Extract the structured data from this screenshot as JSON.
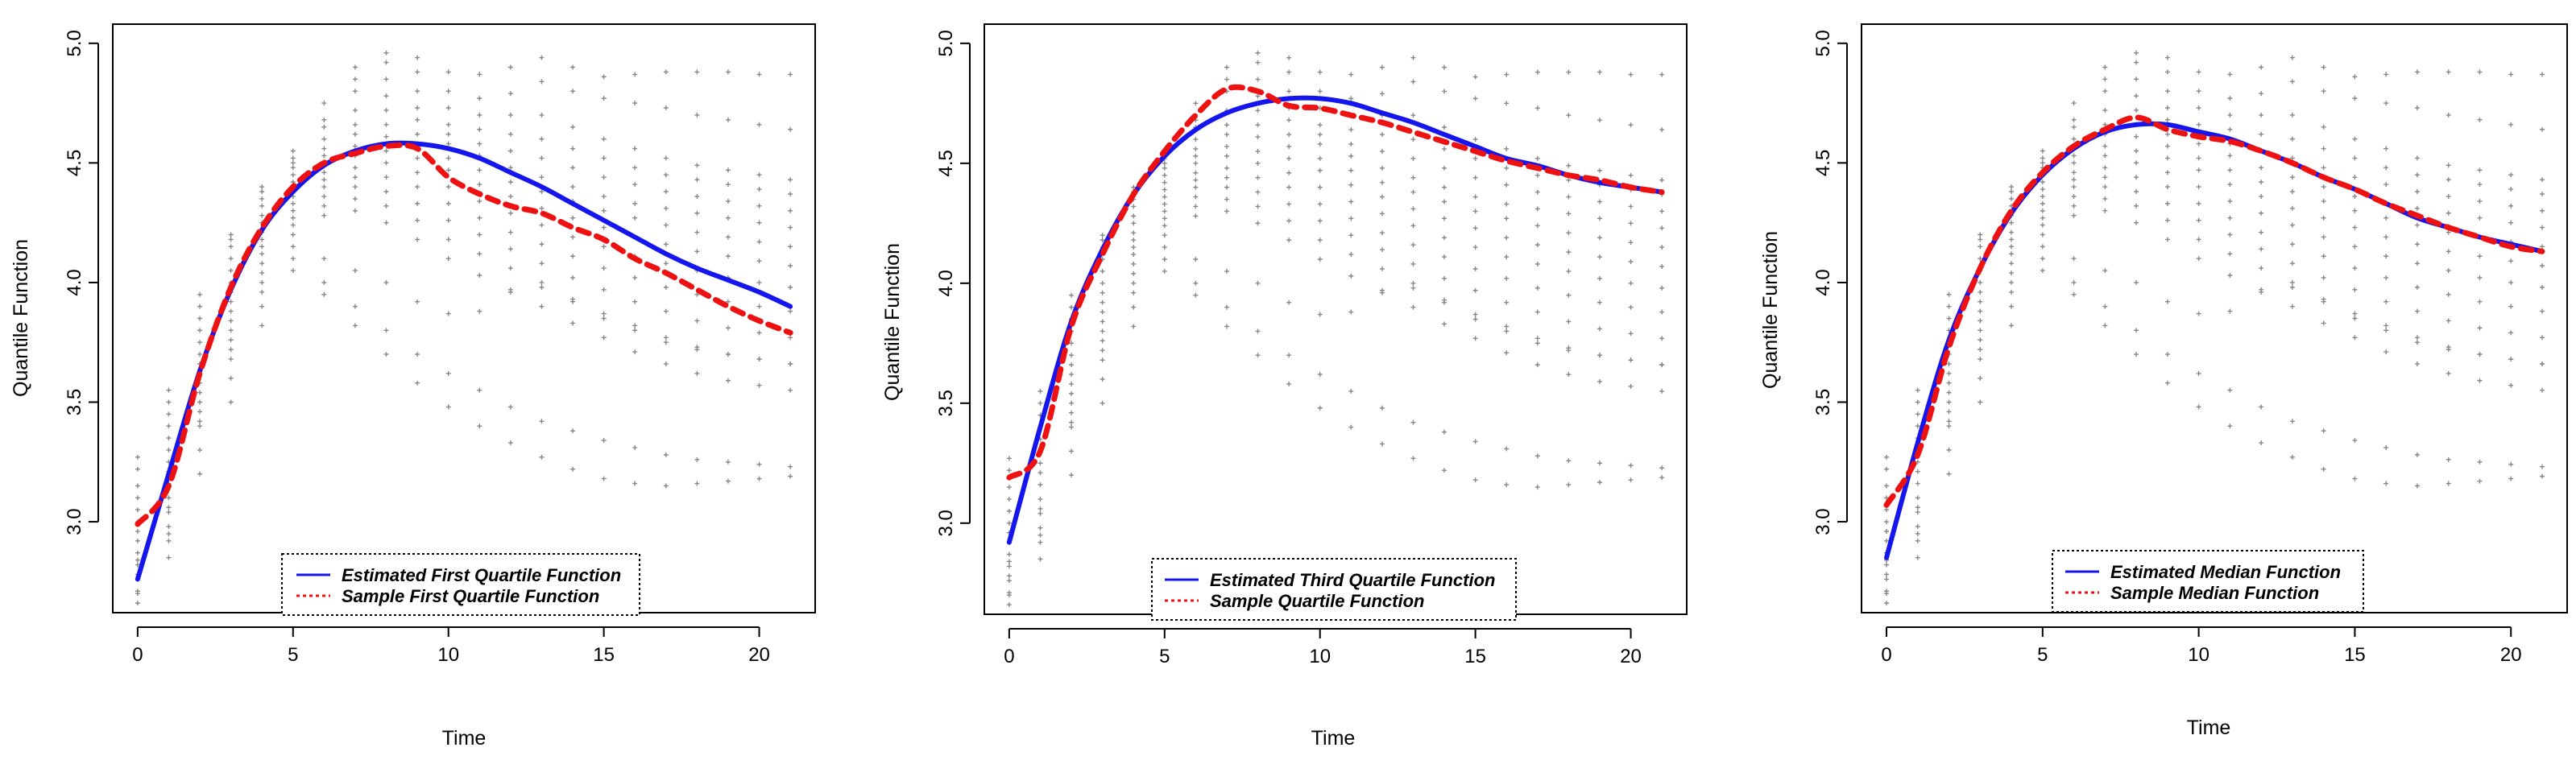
{
  "figure": {
    "background": "#ffffff"
  },
  "chart_data": [
    {
      "type": "line",
      "xlabel": "Time",
      "ylabel": "Quantile Function",
      "xlim": [
        -0.8,
        21.8
      ],
      "ylim": [
        2.62,
        5.08
      ],
      "xticks": [
        0,
        5,
        10,
        15,
        20
      ],
      "yticks": [
        3.0,
        3.5,
        4.0,
        4.5,
        5.0
      ],
      "legend": {
        "placement": "bottom-center"
      },
      "series": [
        {
          "name": "Estimated First Quartile Function",
          "color": "#1515ee",
          "style": "solid",
          "x": [
            0,
            1,
            2,
            3,
            4,
            5,
            6,
            7,
            8,
            9,
            10,
            11,
            12,
            13,
            14,
            15,
            16,
            17,
            18,
            19,
            20,
            21
          ],
          "y": [
            2.76,
            3.2,
            3.63,
            3.97,
            4.22,
            4.38,
            4.49,
            4.55,
            4.58,
            4.58,
            4.56,
            4.52,
            4.46,
            4.4,
            4.33,
            4.26,
            4.19,
            4.12,
            4.06,
            4.01,
            3.96,
            3.9
          ]
        },
        {
          "name": "Sample First Quartile Function",
          "color": "#ee1111",
          "style": "dashed",
          "x": [
            0,
            1,
            2,
            3,
            4,
            5,
            6,
            7,
            8,
            9,
            10,
            11,
            12,
            13,
            14,
            15,
            16,
            17,
            18,
            19,
            20,
            21
          ],
          "y": [
            2.99,
            3.15,
            3.62,
            3.98,
            4.23,
            4.4,
            4.5,
            4.54,
            4.57,
            4.56,
            4.44,
            4.37,
            4.32,
            4.29,
            4.23,
            4.18,
            4.1,
            4.04,
            3.97,
            3.9,
            3.84,
            3.79
          ]
        }
      ]
    },
    {
      "type": "line",
      "xlabel": "Time",
      "ylabel": "Quantile Function",
      "xlim": [
        -0.8,
        21.8
      ],
      "ylim": [
        2.62,
        5.08
      ],
      "xticks": [
        0,
        5,
        10,
        15,
        20
      ],
      "yticks": [
        3.0,
        3.5,
        4.0,
        4.5,
        5.0
      ],
      "legend": {
        "placement": "bottom-center"
      },
      "series": [
        {
          "name": "Estimated Third Quartile Function",
          "color": "#1515ee",
          "style": "solid",
          "x": [
            0,
            1,
            2,
            3,
            4,
            5,
            6,
            7,
            8,
            9,
            10,
            11,
            12,
            13,
            14,
            15,
            16,
            17,
            18,
            19,
            20,
            21
          ],
          "y": [
            2.92,
            3.4,
            3.84,
            4.14,
            4.37,
            4.53,
            4.64,
            4.71,
            4.75,
            4.77,
            4.77,
            4.75,
            4.71,
            4.67,
            4.62,
            4.57,
            4.52,
            4.49,
            4.45,
            4.42,
            4.4,
            4.38
          ]
        },
        {
          "name": "Sample Quartile Function",
          "color": "#ee1111",
          "style": "dashed",
          "x": [
            0,
            1,
            2,
            3,
            4,
            5,
            6,
            7,
            8,
            9,
            10,
            11,
            12,
            13,
            14,
            15,
            16,
            17,
            18,
            19,
            20,
            21
          ],
          "y": [
            3.19,
            3.3,
            3.82,
            4.12,
            4.37,
            4.55,
            4.7,
            4.81,
            4.8,
            4.74,
            4.73,
            4.7,
            4.67,
            4.63,
            4.59,
            4.55,
            4.51,
            4.48,
            4.45,
            4.43,
            4.4,
            4.38
          ]
        }
      ]
    },
    {
      "type": "line",
      "xlabel": "Time",
      "ylabel": "Quantile Function",
      "xlim": [
        -0.8,
        21.8
      ],
      "ylim": [
        2.62,
        5.08
      ],
      "xticks": [
        0,
        5,
        10,
        15,
        20
      ],
      "yticks": [
        3.0,
        3.5,
        4.0,
        4.5,
        5.0
      ],
      "legend": {
        "placement": "bottom-right"
      },
      "series": [
        {
          "name": "Estimated Median Function",
          "color": "#1515ee",
          "style": "solid",
          "x": [
            0,
            1,
            2,
            3,
            4,
            5,
            6,
            7,
            8,
            9,
            10,
            11,
            12,
            13,
            14,
            15,
            16,
            17,
            18,
            19,
            20,
            21
          ],
          "y": [
            2.85,
            3.33,
            3.76,
            4.06,
            4.29,
            4.45,
            4.56,
            4.63,
            4.66,
            4.66,
            4.63,
            4.6,
            4.55,
            4.5,
            4.44,
            4.39,
            4.33,
            4.27,
            4.23,
            4.19,
            4.16,
            4.13
          ]
        },
        {
          "name": "Sample Median Function",
          "color": "#ee1111",
          "style": "dashed",
          "x": [
            0,
            1,
            2,
            3,
            4,
            5,
            6,
            7,
            8,
            9,
            10,
            11,
            12,
            13,
            14,
            15,
            16,
            17,
            18,
            19,
            20,
            21
          ],
          "y": [
            3.07,
            3.28,
            3.73,
            4.06,
            4.3,
            4.46,
            4.57,
            4.64,
            4.69,
            4.64,
            4.61,
            4.59,
            4.55,
            4.5,
            4.44,
            4.39,
            4.33,
            4.28,
            4.23,
            4.19,
            4.15,
            4.13
          ]
        }
      ]
    }
  ],
  "observations": {
    "type": "scatter",
    "color": "#888888",
    "marker": "+",
    "x": [
      0,
      1,
      2,
      3,
      4,
      5,
      6,
      7,
      8,
      9,
      10,
      11,
      12,
      13,
      14,
      15,
      16,
      17,
      18,
      19,
      20,
      21
    ],
    "subjects": [
      [
        3.27,
        3.55,
        3.95,
        4.2,
        4.4,
        4.55,
        4.75,
        4.9,
        4.96,
        4.94,
        4.88,
        4.87,
        4.9,
        4.94,
        4.9,
        4.86,
        4.87,
        4.88,
        4.88,
        4.88,
        4.87,
        4.87
      ],
      [
        3.22,
        3.5,
        3.9,
        4.18,
        4.38,
        4.52,
        4.68,
        4.85,
        4.92,
        4.88,
        4.8,
        4.77,
        4.79,
        4.84,
        4.8,
        4.77,
        4.75,
        4.73,
        4.7,
        4.68,
        4.66,
        4.64
      ],
      [
        3.15,
        3.45,
        3.85,
        4.15,
        4.35,
        4.5,
        4.65,
        4.8,
        4.85,
        4.8,
        4.73,
        4.7,
        4.7,
        4.7,
        4.65,
        4.6,
        4.56,
        4.52,
        4.49,
        4.47,
        4.45,
        4.43
      ],
      [
        3.1,
        3.4,
        3.8,
        4.1,
        4.32,
        4.48,
        4.6,
        4.72,
        4.78,
        4.73,
        4.66,
        4.64,
        4.62,
        4.6,
        4.56,
        4.52,
        4.48,
        4.45,
        4.43,
        4.41,
        4.39,
        4.37
      ],
      [
        3.05,
        3.35,
        3.75,
        4.05,
        4.28,
        4.45,
        4.56,
        4.66,
        4.72,
        4.68,
        4.62,
        4.58,
        4.55,
        4.52,
        4.48,
        4.44,
        4.41,
        4.38,
        4.36,
        4.34,
        4.32,
        4.3
      ],
      [
        3.0,
        3.3,
        3.7,
        4.0,
        4.25,
        4.42,
        4.53,
        4.62,
        4.66,
        4.62,
        4.58,
        4.53,
        4.48,
        4.44,
        4.4,
        4.36,
        4.33,
        4.31,
        4.29,
        4.27,
        4.25,
        4.23
      ],
      [
        2.96,
        3.25,
        3.66,
        3.96,
        4.21,
        4.39,
        4.5,
        4.57,
        4.61,
        4.57,
        4.52,
        4.47,
        4.42,
        4.38,
        4.34,
        4.3,
        4.27,
        4.24,
        4.21,
        4.19,
        4.17,
        4.15
      ],
      [
        2.92,
        3.21,
        3.62,
        3.92,
        4.18,
        4.36,
        4.46,
        4.53,
        4.55,
        4.52,
        4.47,
        4.41,
        4.36,
        4.31,
        4.27,
        4.23,
        4.19,
        4.16,
        4.13,
        4.11,
        4.09,
        4.07
      ],
      [
        2.87,
        3.16,
        3.58,
        3.88,
        4.15,
        4.33,
        4.43,
        4.48,
        4.5,
        4.46,
        4.4,
        4.34,
        4.29,
        4.24,
        4.19,
        4.15,
        4.11,
        4.08,
        4.05,
        4.02,
        4.0,
        3.98
      ],
      [
        2.82,
        3.1,
        3.54,
        3.84,
        4.12,
        4.3,
        4.4,
        4.44,
        4.44,
        4.4,
        4.33,
        4.27,
        4.21,
        4.16,
        4.11,
        4.06,
        4.02,
        3.98,
        3.95,
        3.92,
        3.9,
        3.88
      ],
      [
        2.76,
        3.04,
        3.5,
        3.8,
        4.08,
        4.27,
        4.36,
        4.4,
        4.38,
        4.33,
        4.26,
        4.2,
        4.14,
        4.08,
        4.02,
        3.97,
        3.92,
        3.88,
        3.84,
        3.81,
        3.79,
        3.77
      ],
      [
        2.71,
        2.98,
        3.46,
        3.76,
        4.04,
        4.24,
        4.32,
        4.35,
        4.32,
        4.26,
        4.18,
        4.12,
        4.06,
        4.0,
        3.93,
        3.87,
        3.82,
        3.77,
        3.73,
        3.7,
        3.68,
        3.66
      ],
      [
        2.66,
        2.92,
        3.42,
        3.72,
        4.0,
        4.2,
        4.28,
        4.3,
        4.25,
        4.18,
        4.1,
        4.03,
        3.97,
        3.9,
        3.83,
        3.77,
        3.71,
        3.66,
        3.62,
        3.59,
        3.57,
        3.55
      ],
      [
        2.84,
        3.06,
        3.4,
        3.68,
        3.96,
        4.15,
        4.1,
        4.05,
        4.0,
        3.92,
        3.87,
        3.88,
        3.96,
        3.98,
        3.92,
        3.85,
        3.8,
        3.75,
        3.72,
        3.7,
        3.68,
        3.66
      ],
      [
        2.78,
        2.95,
        3.3,
        3.6,
        3.9,
        4.1,
        4.0,
        3.9,
        3.8,
        3.7,
        3.62,
        3.55,
        3.48,
        3.42,
        3.38,
        3.34,
        3.31,
        3.28,
        3.26,
        3.25,
        3.24,
        3.23
      ],
      [
        2.7,
        2.85,
        3.2,
        3.5,
        3.82,
        4.05,
        3.95,
        3.82,
        3.7,
        3.58,
        3.48,
        3.4,
        3.33,
        3.27,
        3.22,
        3.18,
        3.16,
        3.15,
        3.16,
        3.17,
        3.18,
        3.19
      ]
    ]
  }
}
